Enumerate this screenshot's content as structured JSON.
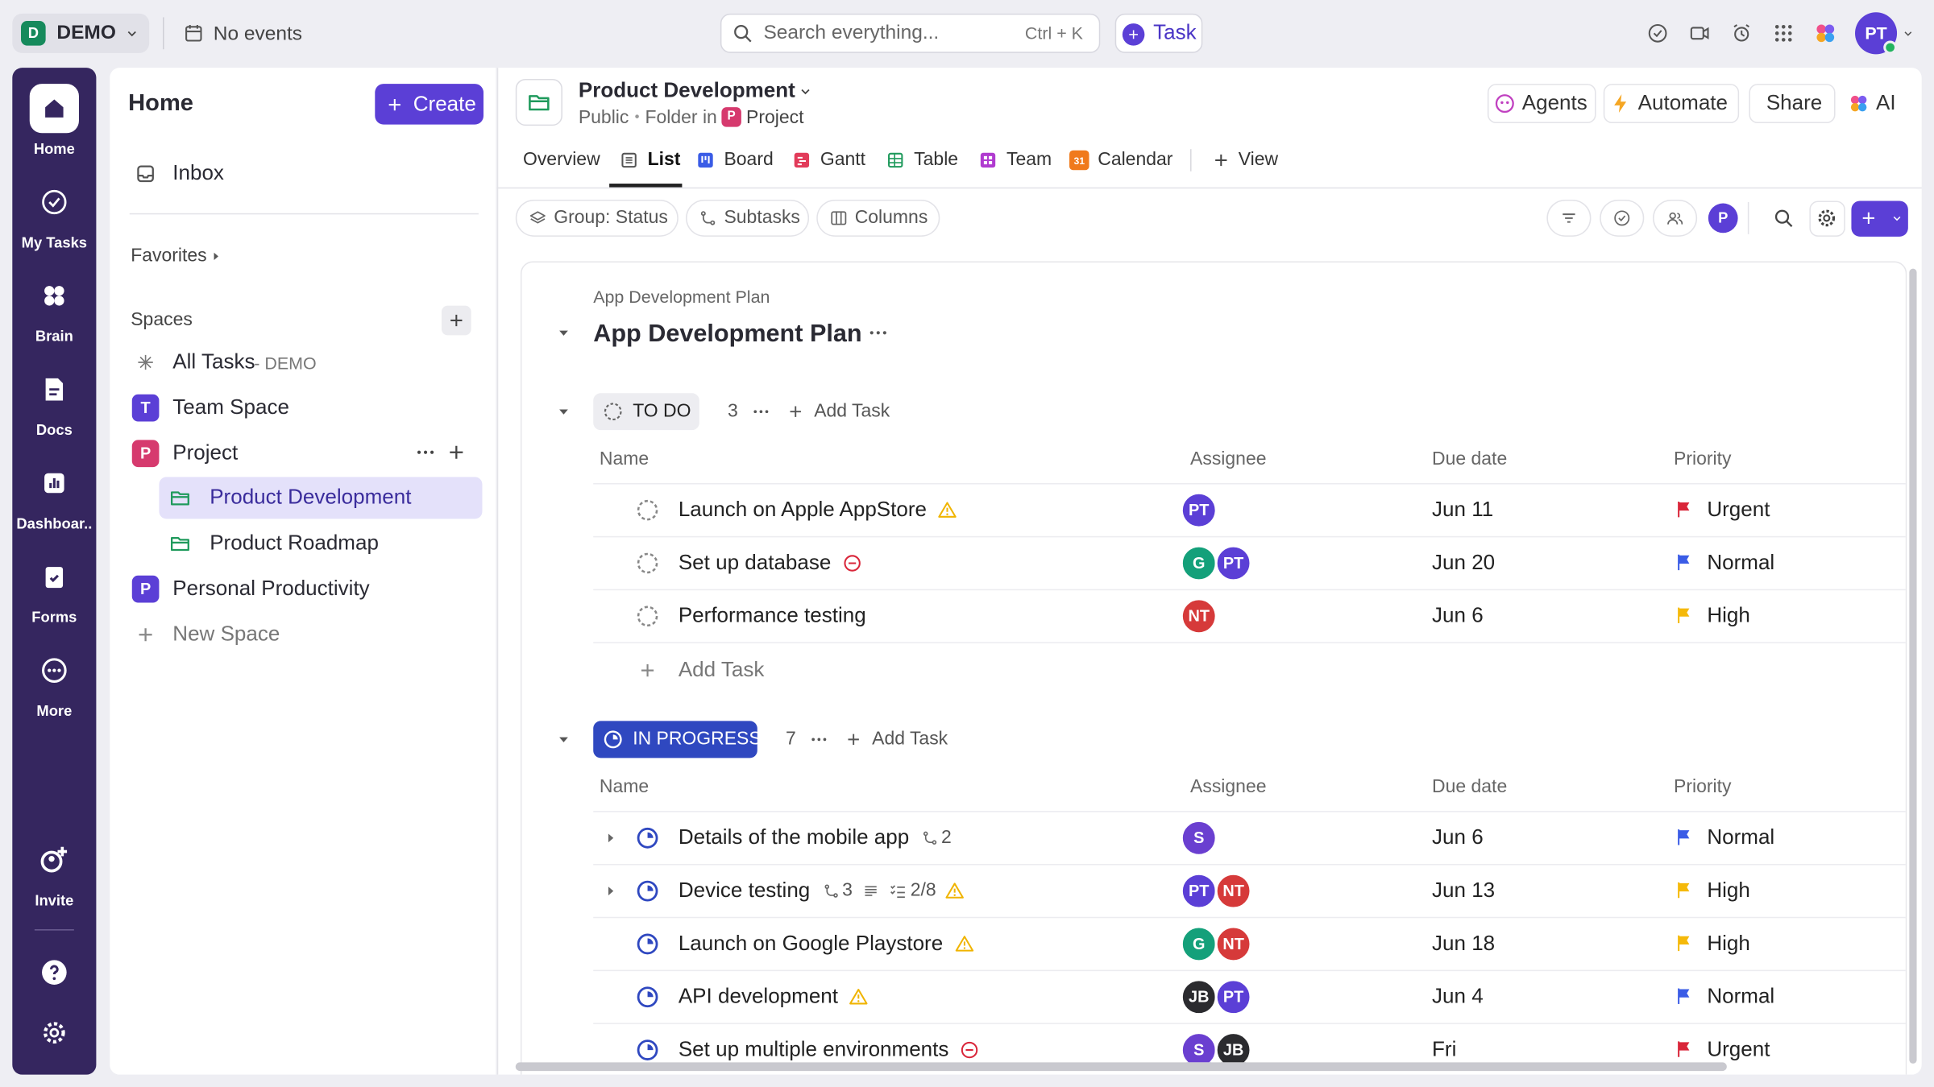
{
  "topbar": {
    "workspace_initial": "D",
    "workspace": "DEMO",
    "events": "No events",
    "search_placeholder": "Search everything...",
    "search_shortcut": "Ctrl + K",
    "task_button": "Task",
    "avatar": "PT"
  },
  "rail": {
    "items": [
      "Home",
      "My Tasks",
      "Brain",
      "Docs",
      "Dashboar..",
      "Forms",
      "More"
    ],
    "invite": "Invite"
  },
  "sidebar": {
    "title": "Home",
    "create": "Create",
    "inbox": "Inbox",
    "favorites": "Favorites",
    "spaces": "Spaces",
    "all_tasks": "All Tasks",
    "all_tasks_suffix": "- DEMO",
    "space_list": [
      {
        "initial": "T",
        "name": "Team Space",
        "color": "#5b3fd6"
      },
      {
        "initial": "P",
        "name": "Project",
        "color": "#d63a6e"
      }
    ],
    "folders": [
      "Product Development",
      "Product Roadmap"
    ],
    "personal": {
      "initial": "P",
      "name": "Personal Productivity",
      "color": "#5b3fd6"
    },
    "new_space": "New Space"
  },
  "header": {
    "title": "Product Development",
    "visibility": "Public",
    "folder_in": "Folder in",
    "space_initial": "P",
    "space": "Project",
    "actions": [
      "Agents",
      "Automate",
      "Share",
      "AI"
    ]
  },
  "views": {
    "items": [
      "Overview",
      "List",
      "Board",
      "Gantt",
      "Table",
      "Team",
      "Calendar"
    ],
    "calendar_day": "31",
    "add_view": "View"
  },
  "toolbar": {
    "group": "Group: Status",
    "subtasks": "Subtasks",
    "columns": "Columns",
    "avatar": "P"
  },
  "list": {
    "breadcrumb": "App Development Plan",
    "title": "App Development Plan",
    "columns": [
      "Name",
      "Assignee",
      "Due date",
      "Priority"
    ],
    "groups": [
      {
        "status": "TO DO",
        "kind": "todo",
        "count": 3,
        "add_task": "Add Task",
        "add_row": "Add Task",
        "tasks": [
          {
            "name": "Launch on Apple AppStore",
            "indicator": "warning",
            "assignees": [
              {
                "initials": "PT",
                "color": "#5b3fd6"
              }
            ],
            "due": "Jun 11",
            "priority": "Urgent",
            "flag": "#d9263a"
          },
          {
            "name": "Set up database",
            "indicator": "blocked",
            "assignees": [
              {
                "initials": "G",
                "color": "#14a07a"
              },
              {
                "initials": "PT",
                "color": "#5b3fd6"
              }
            ],
            "due": "Jun 20",
            "priority": "Normal",
            "flag": "#3a5ce6"
          },
          {
            "name": "Performance testing",
            "assignees": [
              {
                "initials": "NT",
                "color": "#d63a3a"
              }
            ],
            "due": "Jun 6",
            "priority": "High",
            "flag": "#f5b90a"
          }
        ]
      },
      {
        "status": "IN PROGRESS",
        "kind": "progress",
        "count": 7,
        "add_task": "Add Task",
        "tasks": [
          {
            "name": "Details of the mobile app",
            "subtasks": 2,
            "assignees": [
              {
                "initials": "S",
                "color": "#6a3fd0"
              }
            ],
            "due": "Jun 6",
            "priority": "Normal",
            "flag": "#3a5ce6"
          },
          {
            "name": "Device testing",
            "subtasks": 3,
            "description": true,
            "checklist": "2/8",
            "indicator": "warning",
            "assignees": [
              {
                "initials": "PT",
                "color": "#5b3fd6"
              },
              {
                "initials": "NT",
                "color": "#d63a3a"
              }
            ],
            "due": "Jun 13",
            "priority": "High",
            "flag": "#f5b90a"
          },
          {
            "name": "Launch on Google Playstore",
            "indicator": "warning",
            "assignees": [
              {
                "initials": "G",
                "color": "#14a07a"
              },
              {
                "initials": "NT",
                "color": "#d63a3a"
              }
            ],
            "due": "Jun 18",
            "priority": "High",
            "flag": "#f5b90a"
          },
          {
            "name": "API development",
            "indicator": "warning",
            "assignees": [
              {
                "initials": "JB",
                "color": "#2b2b2f"
              },
              {
                "initials": "PT",
                "color": "#5b3fd6"
              }
            ],
            "due": "Jun 4",
            "priority": "Normal",
            "flag": "#3a5ce6"
          },
          {
            "name": "Set up multiple environments",
            "indicator": "blocked",
            "assignees": [
              {
                "initials": "S",
                "color": "#6a3fd0"
              },
              {
                "initials": "JB",
                "color": "#2b2b2f"
              }
            ],
            "due": "Fri",
            "priority": "Urgent",
            "flag": "#d9263a"
          }
        ]
      }
    ]
  }
}
